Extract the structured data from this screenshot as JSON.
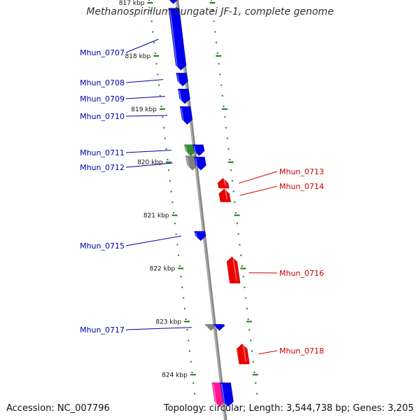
{
  "title": "Methanospirillum hungatei JF-1, complete genome",
  "footer": {
    "accession": "Accession: NC_007796",
    "summary": "Topology: circular; Length: 3,544,738 bp; Genes: 3,205"
  },
  "colors": {
    "forward": "#0000ee",
    "reverse": "#ee0000",
    "grey": "#808080",
    "green": "#2e8b2e",
    "pink": "#ff1493",
    "ruler": "#1a7a1a",
    "backbone": "#888888",
    "label_left": "#0000aa",
    "label_right": "#cc0000"
  },
  "ticks": [
    {
      "label": "817 kbp",
      "kb": 817
    },
    {
      "label": "818 kbp",
      "kb": 818
    },
    {
      "label": "819 kbp",
      "kb": 819
    },
    {
      "label": "820 kbp",
      "kb": 820
    },
    {
      "label": "821 kbp",
      "kb": 821
    },
    {
      "label": "822 kbp",
      "kb": 822
    },
    {
      "label": "823 kbp",
      "kb": 823
    },
    {
      "label": "824 kbp",
      "kb": 824
    }
  ],
  "genes": [
    {
      "label": "",
      "strand": "+",
      "color": "forward",
      "start_kb": 816.88,
      "end_kb": 817.02
    },
    {
      "label": "Mhun_0707",
      "strand": "+",
      "color": "forward",
      "start_kb": 817.1,
      "end_kb": 818.27
    },
    {
      "label": "Mhun_0708",
      "strand": "+",
      "color": "forward",
      "start_kb": 818.32,
      "end_kb": 818.57
    },
    {
      "label": "Mhun_0709",
      "strand": "+",
      "color": "forward",
      "start_kb": 818.62,
      "end_kb": 818.9
    },
    {
      "label": "Mhun_0710",
      "strand": "+",
      "color": "forward",
      "start_kb": 818.95,
      "end_kb": 819.29
    },
    {
      "label": "Mhun_0711",
      "strand": "+",
      "color": "green",
      "start_kb": 819.67,
      "end_kb": 819.88
    },
    {
      "label": "Mhun_0712",
      "strand": "+",
      "color": "grey",
      "start_kb": 819.88,
      "end_kb": 820.15
    },
    {
      "label": "",
      "strand": "+",
      "color": "forward",
      "start_kb": 819.67,
      "end_kb": 819.88
    },
    {
      "label": "",
      "strand": "+",
      "color": "forward",
      "start_kb": 819.9,
      "end_kb": 820.15
    },
    {
      "label": "Mhun_0713",
      "strand": "-",
      "color": "reverse",
      "start_kb": 820.3,
      "end_kb": 820.49
    },
    {
      "label": "Mhun_0714",
      "strand": "-",
      "color": "reverse",
      "start_kb": 820.5,
      "end_kb": 820.75
    },
    {
      "label": "Mhun_0715",
      "strand": "+",
      "color": "forward",
      "start_kb": 821.3,
      "end_kb": 821.48
    },
    {
      "label": "Mhun_0716",
      "strand": "-",
      "color": "reverse",
      "start_kb": 821.78,
      "end_kb": 822.28
    },
    {
      "label": "Mhun_0717",
      "strand": "+",
      "color": "grey",
      "start_kb": 823.05,
      "end_kb": 823.17
    },
    {
      "label": "",
      "strand": "+",
      "color": "forward",
      "start_kb": 823.05,
      "end_kb": 823.17
    },
    {
      "label": "Mhun_0718",
      "strand": "-",
      "color": "reverse",
      "start_kb": 823.42,
      "end_kb": 823.8
    },
    {
      "label": "",
      "strand": "+",
      "color": "pink",
      "start_kb": 824.15,
      "end_kb": 824.6
    },
    {
      "label": "",
      "strand": "+",
      "color": "forward",
      "start_kb": 824.15,
      "end_kb": 824.6
    }
  ]
}
